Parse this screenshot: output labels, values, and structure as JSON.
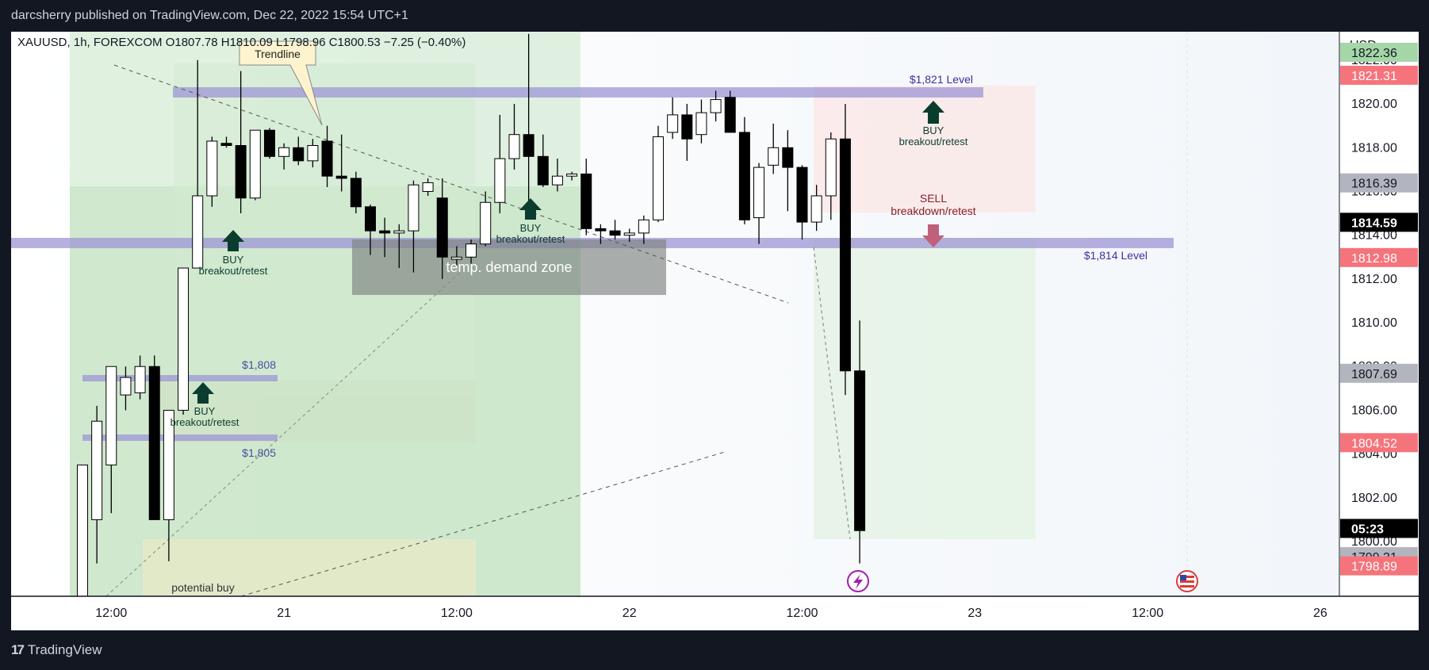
{
  "header": {
    "published": "darcsherry published on TradingView.com, Dec 22, 2022 15:54 UTC+1"
  },
  "legend": {
    "text": "XAUUSD, 1h, FOREXCOM  O1807.78  H1810.09  L1798.96  C1800.53  −7.25 (−0.40%)"
  },
  "currency": "USD",
  "footer": {
    "brand": "TradingView",
    "brand_icon": "tradingview-logo-icon"
  },
  "colors": {
    "up_body": "#ffffff",
    "down_body": "#000000",
    "wick": "#000000",
    "level_band": "#9e96d6",
    "green_zone": "#c8e6c9",
    "red_zone": "#fde8e8",
    "demand_zone": "#8a8f8c",
    "buy_arrow": "#0b3d2e",
    "sell_arrow": "#c0607a",
    "last_price_bg": "#000000",
    "red_tag": "#f5747b",
    "gray_tag": "#b2b5be",
    "green_tag": "#a5d6a7"
  },
  "chart_data": {
    "type": "candlestick",
    "symbol": "XAUUSD",
    "interval": "1h",
    "broker": "FOREXCOM",
    "ylabel": "USD",
    "ylim": [
      1797.5,
      1823.3
    ],
    "y_ticks": [
      "1822.00",
      "1820.00",
      "1818.00",
      "1816.00",
      "1814.00",
      "1812.00",
      "1810.00",
      "1808.00",
      "1806.00",
      "1804.00",
      "1802.00",
      "1800.00"
    ],
    "x_ticks": [
      "12:00",
      "21",
      "12:00",
      "22",
      "12:00",
      "23",
      "12:00",
      "26"
    ],
    "x_tick_index": [
      2,
      14,
      26,
      38,
      50,
      62,
      74,
      86
    ],
    "candles": [
      {
        "o": 1797.0,
        "h": 1803.5,
        "l": 1797.0,
        "c": 1803.5
      },
      {
        "o": 1801.0,
        "h": 1806.2,
        "l": 1799.0,
        "c": 1805.5
      },
      {
        "o": 1803.5,
        "h": 1808.0,
        "l": 1801.3,
        "c": 1808.0
      },
      {
        "o": 1806.7,
        "h": 1808.0,
        "l": 1806.0,
        "c": 1807.5
      },
      {
        "o": 1806.8,
        "h": 1808.5,
        "l": 1806.5,
        "c": 1808.0
      },
      {
        "o": 1808.0,
        "h": 1808.5,
        "l": 1801.0,
        "c": 1801.0
      },
      {
        "o": 1801.0,
        "h": 1806.0,
        "l": 1799.1,
        "c": 1806.0
      },
      {
        "o": 1806.0,
        "h": 1812.5,
        "l": 1805.8,
        "c": 1812.5
      },
      {
        "o": 1812.5,
        "h": 1822.0,
        "l": 1812.5,
        "c": 1815.8
      },
      {
        "o": 1815.8,
        "h": 1818.5,
        "l": 1815.3,
        "c": 1818.3
      },
      {
        "o": 1818.2,
        "h": 1818.5,
        "l": 1818.0,
        "c": 1818.1
      },
      {
        "o": 1818.1,
        "h": 1821.5,
        "l": 1815.0,
        "c": 1815.7
      },
      {
        "o": 1815.7,
        "h": 1818.8,
        "l": 1815.6,
        "c": 1818.8
      },
      {
        "o": 1818.8,
        "h": 1818.9,
        "l": 1817.5,
        "c": 1817.6
      },
      {
        "o": 1817.6,
        "h": 1818.2,
        "l": 1817.0,
        "c": 1818.0
      },
      {
        "o": 1818.0,
        "h": 1818.5,
        "l": 1817.2,
        "c": 1817.4
      },
      {
        "o": 1817.4,
        "h": 1818.4,
        "l": 1817.1,
        "c": 1818.1
      },
      {
        "o": 1818.3,
        "h": 1819.0,
        "l": 1816.2,
        "c": 1816.7
      },
      {
        "o": 1816.7,
        "h": 1818.6,
        "l": 1816.0,
        "c": 1816.6
      },
      {
        "o": 1816.6,
        "h": 1816.9,
        "l": 1815.0,
        "c": 1815.3
      },
      {
        "o": 1815.3,
        "h": 1815.4,
        "l": 1813.1,
        "c": 1814.2
      },
      {
        "o": 1814.2,
        "h": 1814.8,
        "l": 1813.0,
        "c": 1814.1
      },
      {
        "o": 1814.1,
        "h": 1814.5,
        "l": 1812.5,
        "c": 1814.2
      },
      {
        "o": 1814.2,
        "h": 1816.5,
        "l": 1812.3,
        "c": 1816.3
      },
      {
        "o": 1816.0,
        "h": 1816.6,
        "l": 1815.8,
        "c": 1816.4
      },
      {
        "o": 1815.7,
        "h": 1816.6,
        "l": 1812.0,
        "c": 1813.0
      },
      {
        "o": 1812.9,
        "h": 1813.5,
        "l": 1812.5,
        "c": 1813.0
      },
      {
        "o": 1813.0,
        "h": 1813.8,
        "l": 1812.7,
        "c": 1813.6
      },
      {
        "o": 1813.6,
        "h": 1816.0,
        "l": 1813.5,
        "c": 1815.5
      },
      {
        "o": 1815.5,
        "h": 1819.5,
        "l": 1815.0,
        "c": 1817.5
      },
      {
        "o": 1817.5,
        "h": 1820.0,
        "l": 1817.0,
        "c": 1818.6
      },
      {
        "o": 1818.6,
        "h": 1823.2,
        "l": 1815.3,
        "c": 1817.6
      },
      {
        "o": 1817.6,
        "h": 1818.6,
        "l": 1816.2,
        "c": 1816.3
      },
      {
        "o": 1816.3,
        "h": 1817.5,
        "l": 1816.0,
        "c": 1816.7
      },
      {
        "o": 1816.7,
        "h": 1816.9,
        "l": 1816.5,
        "c": 1816.8
      },
      {
        "o": 1816.8,
        "h": 1817.5,
        "l": 1814.0,
        "c": 1814.3
      },
      {
        "o": 1814.3,
        "h": 1814.5,
        "l": 1813.6,
        "c": 1814.2
      },
      {
        "o": 1814.2,
        "h": 1814.7,
        "l": 1813.8,
        "c": 1814.0
      },
      {
        "o": 1814.0,
        "h": 1814.3,
        "l": 1813.7,
        "c": 1814.1
      },
      {
        "o": 1814.1,
        "h": 1814.9,
        "l": 1813.6,
        "c": 1814.7
      },
      {
        "o": 1814.7,
        "h": 1819.0,
        "l": 1814.6,
        "c": 1818.5
      },
      {
        "o": 1818.7,
        "h": 1820.3,
        "l": 1818.4,
        "c": 1819.5
      },
      {
        "o": 1819.5,
        "h": 1820.0,
        "l": 1817.4,
        "c": 1818.4
      },
      {
        "o": 1818.6,
        "h": 1820.2,
        "l": 1818.2,
        "c": 1819.6
      },
      {
        "o": 1819.6,
        "h": 1820.6,
        "l": 1819.2,
        "c": 1820.2
      },
      {
        "o": 1820.3,
        "h": 1820.6,
        "l": 1818.7,
        "c": 1818.7
      },
      {
        "o": 1818.7,
        "h": 1819.4,
        "l": 1814.5,
        "c": 1814.7
      },
      {
        "o": 1814.8,
        "h": 1817.3,
        "l": 1813.6,
        "c": 1817.1
      },
      {
        "o": 1817.2,
        "h": 1819.1,
        "l": 1816.8,
        "c": 1818.0
      },
      {
        "o": 1818.0,
        "h": 1818.8,
        "l": 1815.1,
        "c": 1817.1
      },
      {
        "o": 1817.1,
        "h": 1817.2,
        "l": 1813.8,
        "c": 1814.6
      },
      {
        "o": 1814.6,
        "h": 1816.3,
        "l": 1814.2,
        "c": 1815.8
      },
      {
        "o": 1815.8,
        "h": 1818.7,
        "l": 1814.7,
        "c": 1818.4
      },
      {
        "o": 1818.4,
        "h": 1820.0,
        "l": 1806.7,
        "c": 1807.8
      },
      {
        "o": 1807.8,
        "h": 1810.1,
        "l": 1799.0,
        "c": 1800.5
      }
    ]
  },
  "price_tags": [
    {
      "price": 1822.36,
      "label": "1822.36",
      "style": "green"
    },
    {
      "price": 1821.31,
      "label": "1821.31",
      "style": "red"
    },
    {
      "price": 1816.39,
      "label": "1816.39",
      "style": "gray"
    },
    {
      "price": 1814.59,
      "label": "1814.59",
      "style": "last"
    },
    {
      "price": 1812.98,
      "label": "1812.98",
      "style": "red"
    },
    {
      "price": 1807.69,
      "label": "1807.69",
      "style": "gray"
    },
    {
      "price": 1804.52,
      "label": "1804.52",
      "style": "red"
    },
    {
      "price": 1800.6,
      "label": "05:23",
      "style": "last"
    },
    {
      "price": 1799.31,
      "label": "1799.31",
      "style": "gray"
    },
    {
      "price": 1798.89,
      "label": "1798.89",
      "style": "red"
    }
  ],
  "annotations": {
    "trendline_label": "Trendline",
    "level_1821": "$1,821 Level",
    "level_1814": "$1,814 Level",
    "level_1808": "$1,808",
    "level_1805": "$1,805",
    "demand_zone": "temp. demand zone",
    "potential_buy": "potential buy",
    "buy_1": {
      "title": "BUY",
      "subtitle": "breakout/retest"
    },
    "buy_2": {
      "title": "BUY",
      "subtitle": "breakout/retest"
    },
    "buy_3": {
      "title": "BUY",
      "subtitle": "breakout/retest"
    },
    "buy_4": {
      "title": "BUY",
      "subtitle": "breakout/retest"
    },
    "sell_1": {
      "title": "SELL",
      "subtitle": "breakdown/retest"
    },
    "event_icon": "lightning-icon",
    "us_flag_icon": "us-flag-icon"
  }
}
